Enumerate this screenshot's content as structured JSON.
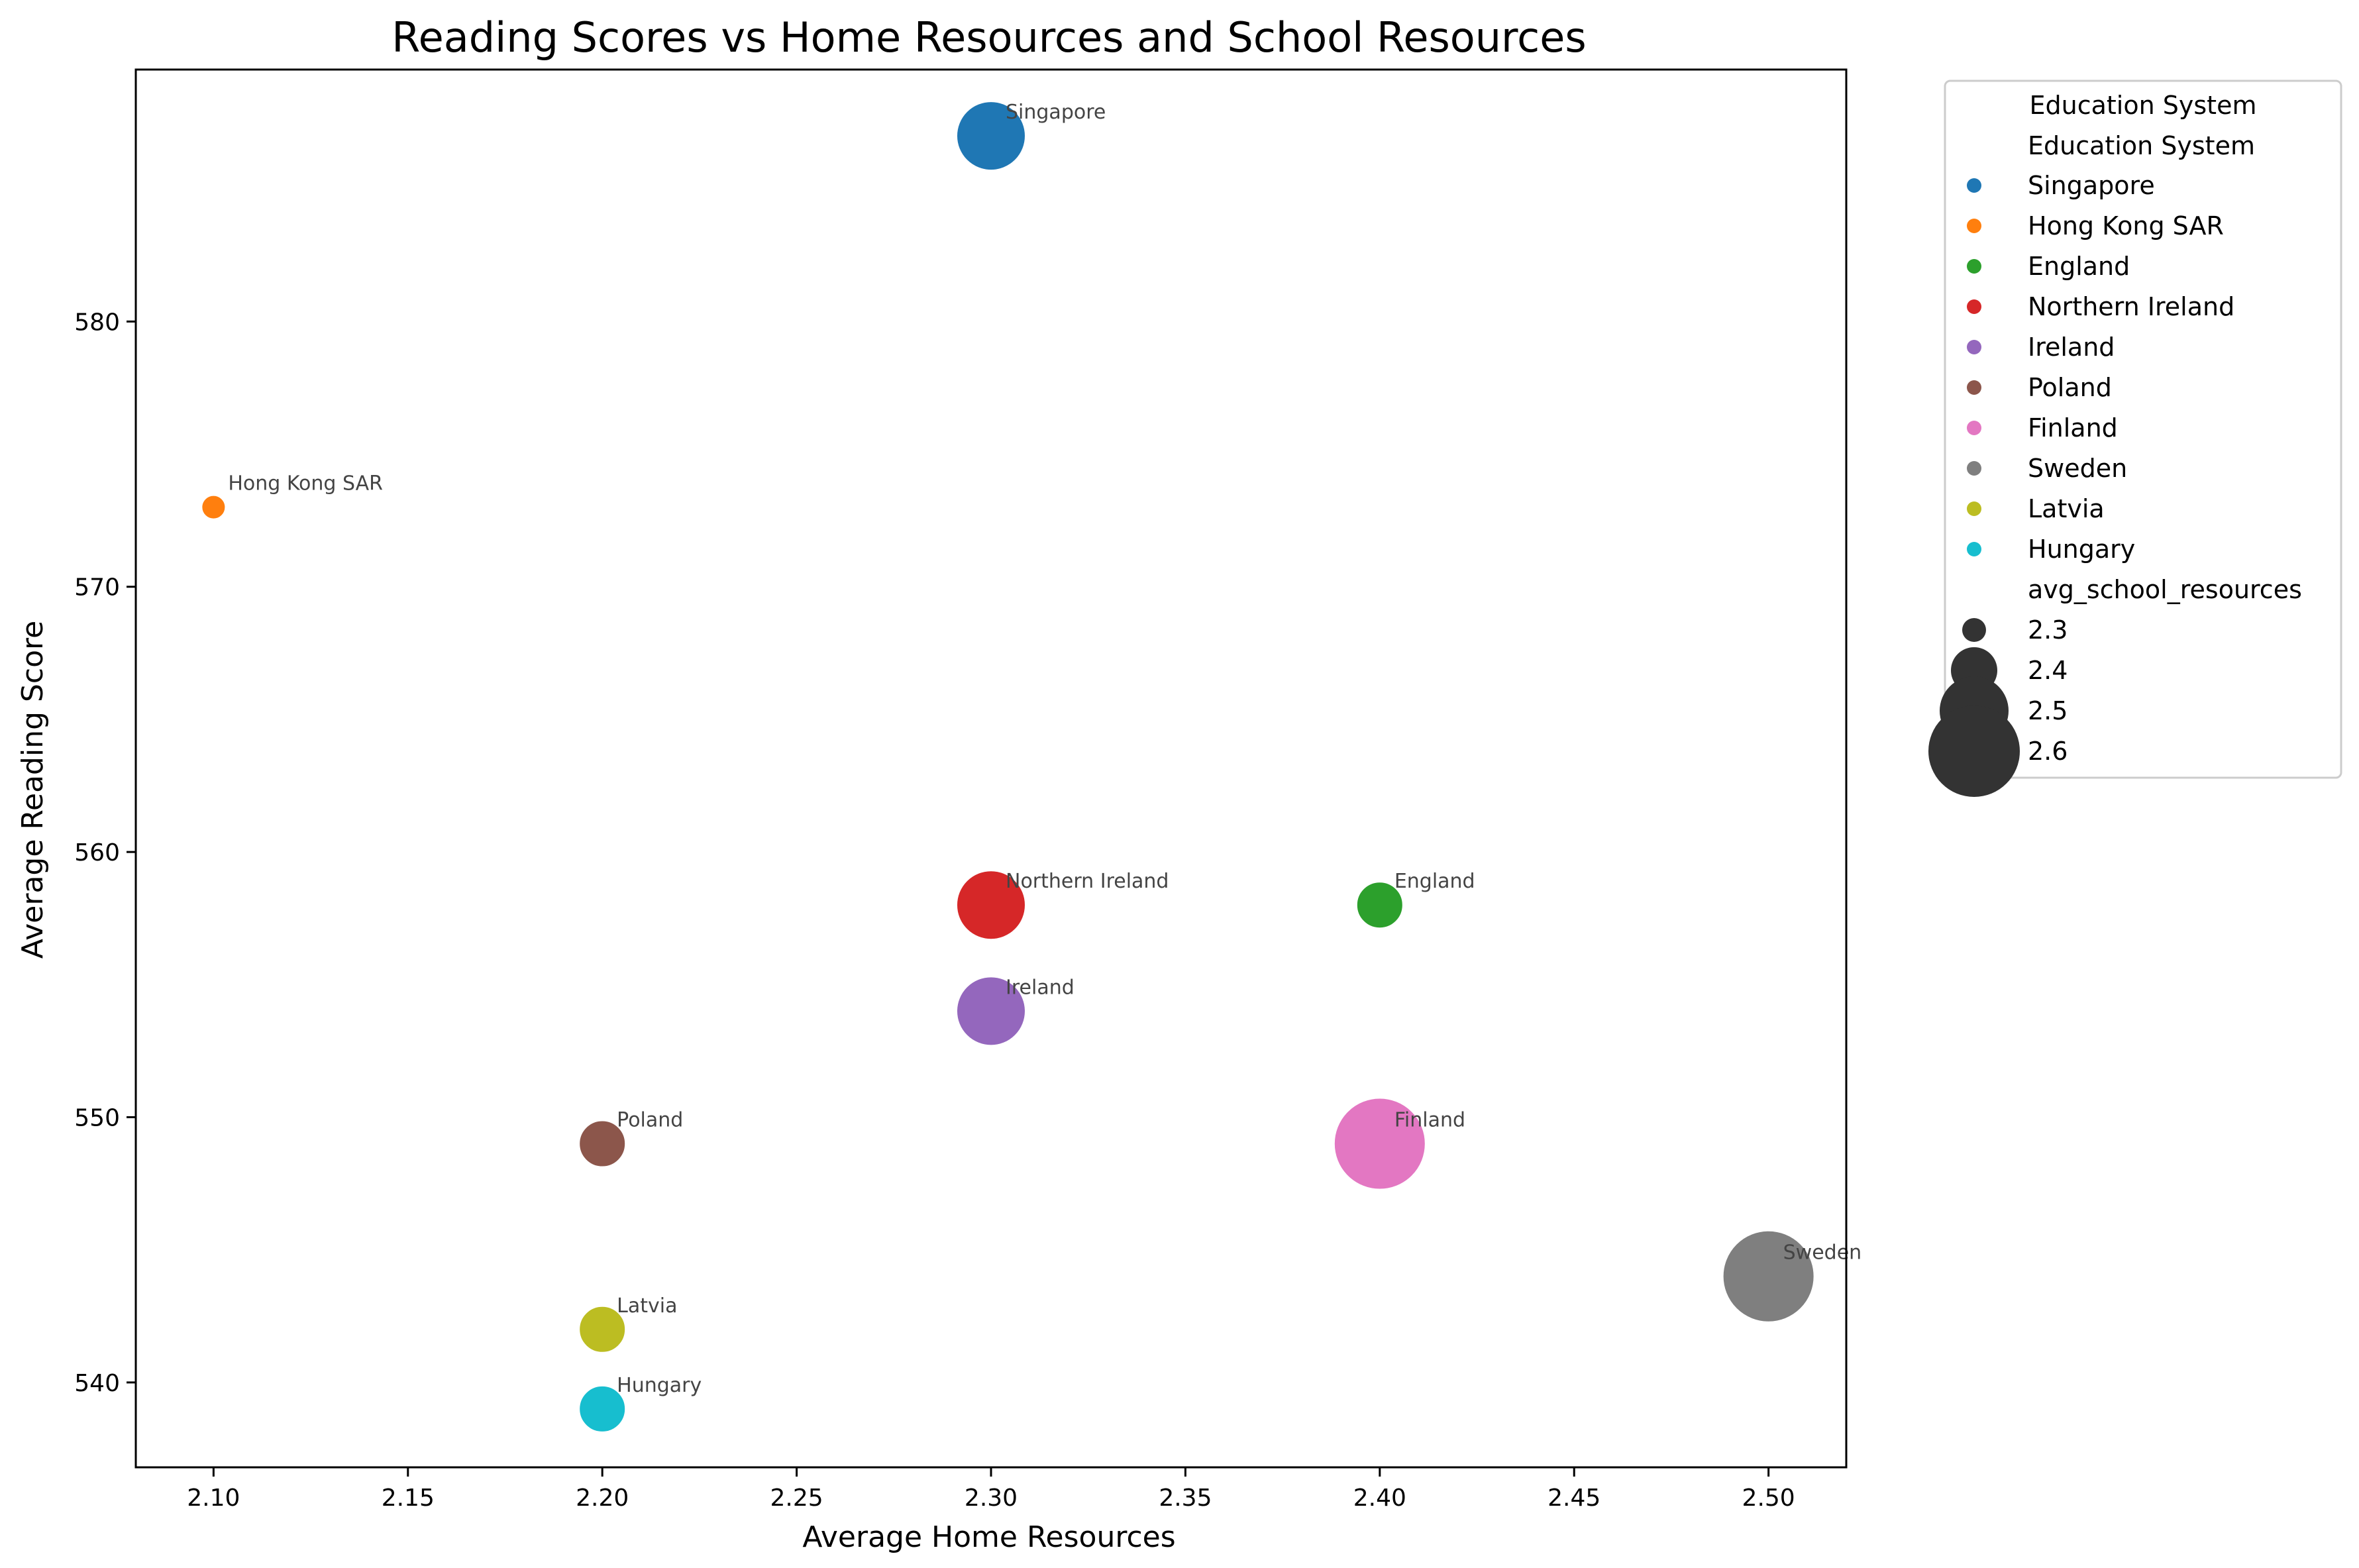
{
  "chart_data": {
    "type": "scatter",
    "title": "Reading Scores vs Home Resources and School Resources",
    "xlabel": "Average Home Resources",
    "ylabel": "Average Reading Score",
    "xlim": [
      2.08,
      2.52
    ],
    "ylim": [
      536.8,
      589.5
    ],
    "xticks": [
      "2.10",
      "2.15",
      "2.20",
      "2.25",
      "2.30",
      "2.35",
      "2.40",
      "2.45",
      "2.50"
    ],
    "yticks": [
      "540",
      "550",
      "560",
      "570",
      "580"
    ],
    "grid": false,
    "legend": {
      "placement": "outside-right",
      "title": "Education System",
      "hue_title": "Education System",
      "size_title": "avg_school_resources",
      "size_entries": [
        {
          "label": "2.3",
          "value": 2.3
        },
        {
          "label": "2.4",
          "value": 2.4
        },
        {
          "label": "2.5",
          "value": 2.5
        },
        {
          "label": "2.6",
          "value": 2.6
        }
      ]
    },
    "series": [
      {
        "name": "Singapore",
        "color": "#1f77b4",
        "x": 2.3,
        "y": 587,
        "size": 2.5
      },
      {
        "name": "Hong Kong SAR",
        "color": "#ff7f0e",
        "x": 2.1,
        "y": 573,
        "size": 2.3
      },
      {
        "name": "England",
        "color": "#2ca02c",
        "x": 2.4,
        "y": 558,
        "size": 2.4
      },
      {
        "name": "Northern Ireland",
        "color": "#d62728",
        "x": 2.3,
        "y": 558,
        "size": 2.5
      },
      {
        "name": "Ireland",
        "color": "#9467bd",
        "x": 2.3,
        "y": 554,
        "size": 2.5
      },
      {
        "name": "Poland",
        "color": "#8c564b",
        "x": 2.2,
        "y": 549,
        "size": 2.4
      },
      {
        "name": "Finland",
        "color": "#e377c2",
        "x": 2.4,
        "y": 549,
        "size": 2.6
      },
      {
        "name": "Sweden",
        "color": "#7f7f7f",
        "x": 2.5,
        "y": 544,
        "size": 2.6
      },
      {
        "name": "Latvia",
        "color": "#bcbd22",
        "x": 2.2,
        "y": 542,
        "size": 2.4
      },
      {
        "name": "Hungary",
        "color": "#17becf",
        "x": 2.2,
        "y": 539,
        "size": 2.4
      }
    ]
  }
}
